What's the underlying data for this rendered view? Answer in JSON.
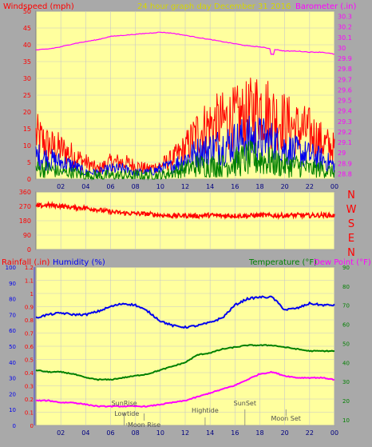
{
  "header": {
    "left_label": "Windspeed (mph)",
    "center_label": "24 hour graph day   December 31 2016",
    "right_label": "Barometer (.in)"
  },
  "colors": {
    "background": "#a9a9a9",
    "plot": "#ffff9e",
    "grid": "#c8c8c8",
    "red": "#ff0000",
    "blue": "#0000ee",
    "green": "#008000",
    "magenta": "#ff00ff",
    "yellow_text": "#d6d600"
  },
  "x_ticks": [
    "02",
    "04",
    "06",
    "08",
    "10",
    "12",
    "14",
    "16",
    "18",
    "20",
    "22",
    "00"
  ],
  "direction_letters": [
    "N",
    "W",
    "S",
    "E",
    "N"
  ],
  "chart_data": [
    {
      "type": "line",
      "title": "24 hour graph day   December 31 2016",
      "ylabel": "Windspeed (mph)",
      "y2label": "Barometer (.in)",
      "y_ticks": [
        "0",
        "5",
        "10",
        "15",
        "20",
        "25",
        "30",
        "35",
        "40",
        "45",
        "50"
      ],
      "ylim": [
        0,
        50
      ],
      "y2_ticks": [
        "28.8",
        "28.9",
        "29",
        "29.1",
        "29.2",
        "29.3",
        "29.4",
        "29.5",
        "29.6",
        "29.7",
        "29.8",
        "29.9",
        "30",
        "30.1",
        "30.2",
        "30.3"
      ],
      "y2lim": [
        28.75,
        30.35
      ],
      "x": [
        "00",
        "01",
        "02",
        "03",
        "04",
        "05",
        "06",
        "07",
        "08",
        "09",
        "10",
        "11",
        "12",
        "13",
        "14",
        "15",
        "16",
        "17",
        "18",
        "19",
        "20",
        "21",
        "22",
        "23",
        "00"
      ],
      "series": [
        {
          "color": "red",
          "values": [
            13,
            10,
            9,
            7,
            5,
            3,
            5,
            5,
            4,
            3,
            4,
            6,
            9,
            14,
            16,
            17,
            18,
            19,
            22,
            19,
            17,
            15,
            14,
            11,
            9
          ]
        },
        {
          "color": "blue",
          "values": [
            7,
            6,
            5,
            4,
            2,
            2,
            3,
            3,
            2,
            2,
            3,
            4,
            6,
            8,
            9,
            10,
            11,
            12,
            12,
            11,
            9,
            8,
            7,
            6,
            4
          ]
        },
        {
          "color": "green",
          "values": [
            3,
            3,
            2,
            2,
            1,
            1,
            1,
            1,
            1,
            1,
            1,
            2,
            3,
            4,
            4,
            4,
            5,
            6,
            6,
            5,
            4,
            4,
            3,
            3,
            2
          ]
        },
        {
          "color": "magenta",
          "axis": "right",
          "values": [
            29.98,
            29.99,
            30.01,
            30.04,
            30.06,
            30.08,
            30.11,
            30.12,
            30.13,
            30.14,
            30.15,
            30.14,
            30.12,
            30.1,
            30.08,
            30.06,
            30.04,
            30.02,
            30.01,
            29.99,
            29.97,
            29.97,
            29.96,
            29.96,
            29.94
          ]
        }
      ]
    },
    {
      "type": "line",
      "y_ticks": [
        "360",
        "270",
        "180",
        "90",
        "0"
      ],
      "ylim": [
        0,
        360
      ],
      "x": [
        "00",
        "01",
        "02",
        "03",
        "04",
        "05",
        "06",
        "07",
        "08",
        "09",
        "10",
        "11",
        "12",
        "13",
        "14",
        "15",
        "16",
        "17",
        "18",
        "19",
        "20",
        "21",
        "22",
        "23",
        "00"
      ],
      "series": [
        {
          "color": "red",
          "values": [
            270,
            278,
            272,
            262,
            260,
            248,
            235,
            228,
            225,
            222,
            215,
            210,
            212,
            210,
            215,
            210,
            212,
            210,
            215,
            212,
            212,
            215,
            212,
            215,
            212
          ]
        }
      ]
    },
    {
      "type": "line",
      "label_rain": "Rainfall (.in)",
      "label_humidity": "Humidity (%)",
      "label_temp": "Temperature (°F)",
      "label_dew": "Dew Point (°F)",
      "y_ticks_rain": [
        "0",
        "0.1",
        "0.2",
        "0.3",
        "0.4",
        "0.5",
        "0.6",
        "0.7",
        "0.8",
        "0.9",
        "1",
        "1.1",
        "1.2"
      ],
      "ylim_rain": [
        0,
        1.2
      ],
      "y_ticks_humidity": [
        "0",
        "10",
        "20",
        "30",
        "40",
        "50",
        "60",
        "70",
        "80",
        "90",
        "100"
      ],
      "ylim_humidity": [
        0,
        100
      ],
      "y_ticks_temp": [
        "10",
        "20",
        "30",
        "40",
        "50",
        "60",
        "70",
        "80",
        "90"
      ],
      "ylim_temp": [
        7,
        90
      ],
      "x": [
        "00",
        "01",
        "02",
        "03",
        "04",
        "05",
        "06",
        "07",
        "08",
        "09",
        "10",
        "11",
        "12",
        "13",
        "14",
        "15",
        "16",
        "17",
        "18",
        "19",
        "20",
        "21",
        "22",
        "23",
        "00"
      ],
      "series": [
        {
          "name": "Humidity (%)",
          "color": "blue",
          "values": [
            68,
            70,
            71,
            70,
            70,
            72,
            75,
            77,
            76,
            72,
            66,
            63,
            62,
            63,
            65,
            68,
            76,
            80,
            81,
            81,
            73,
            74,
            77,
            76,
            76
          ]
        },
        {
          "name": "Temperature (°F)",
          "color": "green",
          "values": [
            36,
            35,
            35,
            34,
            32,
            31,
            31,
            32,
            33,
            34,
            36,
            38,
            40,
            44,
            45,
            47,
            48,
            49,
            49,
            49,
            48,
            47,
            46,
            46,
            46
          ]
        },
        {
          "name": "Dew Point (°F)",
          "color": "magenta",
          "values": [
            20,
            20,
            19,
            19,
            18,
            17,
            17,
            17,
            17,
            17,
            18,
            19,
            20,
            22,
            24,
            26,
            28,
            31,
            34,
            35,
            33,
            32,
            32,
            32,
            31
          ]
        }
      ],
      "annotations": [
        {
          "label": "SunRise",
          "hour": 7.1,
          "y_label": 507,
          "y_tick_top": 517,
          "y_tick_bot": 532
        },
        {
          "label": "Lowtide",
          "hour": 7.3,
          "y_label": 520,
          "y_tick_top": 529,
          "y_tick_bot": 532
        },
        {
          "label": "Moon Rise",
          "hour": 8.7,
          "y_label": 534,
          "y_tick_top": 517,
          "y_tick_bot": 526
        },
        {
          "label": "Hightide",
          "hour": 13.6,
          "y_label": 516,
          "y_tick_top": 522,
          "y_tick_bot": 532
        },
        {
          "label": "SunSet",
          "hour": 16.8,
          "y_label": 507,
          "y_tick_top": 512,
          "y_tick_bot": 532
        },
        {
          "label": "Moon Set",
          "hour": 20.1,
          "y_label": 526,
          "y_tick_top": 512,
          "y_tick_bot": 520
        }
      ]
    }
  ]
}
